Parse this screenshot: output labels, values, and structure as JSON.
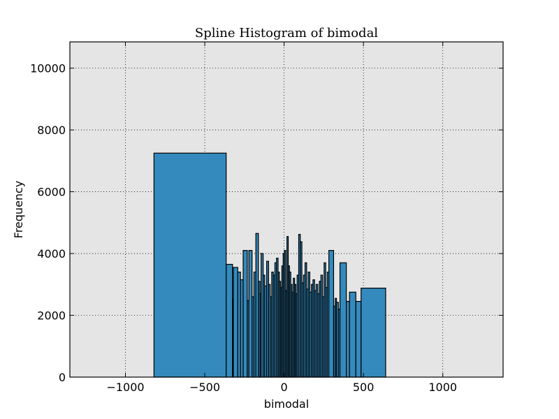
{
  "chart_data": {
    "type": "bar",
    "title": "Spline Histogram of bimodal",
    "xlabel": "bimodal",
    "ylabel": "Frequency",
    "xlim": [
      -1350,
      1380
    ],
    "ylim": [
      0,
      10850
    ],
    "xticks": [
      -1000,
      -500,
      0,
      500,
      1000
    ],
    "xtick_labels": [
      "−1000",
      "−500",
      "0",
      "500",
      "1000"
    ],
    "yticks": [
      0,
      2000,
      4000,
      6000,
      8000,
      10000
    ],
    "ytick_labels": [
      "0",
      "2000",
      "4000",
      "6000",
      "8000",
      "10000"
    ],
    "grid": true,
    "bar_color": "#348abd",
    "background_color": "#e5e5e5",
    "bins": [
      {
        "x0": -820,
        "x1": -365,
        "value": 7250
      },
      {
        "x0": -365,
        "x1": -325,
        "value": 3650
      },
      {
        "x0": -325,
        "x1": -320,
        "value": 2520
      },
      {
        "x0": -320,
        "x1": -292,
        "value": 3550
      },
      {
        "x0": -292,
        "x1": -275,
        "value": 3400
      },
      {
        "x0": -275,
        "x1": -258,
        "value": 3150
      },
      {
        "x0": -258,
        "x1": -232,
        "value": 4100
      },
      {
        "x0": -232,
        "x1": -222,
        "value": 2480
      },
      {
        "x0": -222,
        "x1": -202,
        "value": 4100
      },
      {
        "x0": -202,
        "x1": -190,
        "value": 2600
      },
      {
        "x0": -190,
        "x1": -178,
        "value": 3400
      },
      {
        "x0": -178,
        "x1": -162,
        "value": 4650
      },
      {
        "x0": -162,
        "x1": -152,
        "value": 3100
      },
      {
        "x0": -152,
        "x1": -145,
        "value": 2700
      },
      {
        "x0": -145,
        "x1": -132,
        "value": 4000
      },
      {
        "x0": -132,
        "x1": -122,
        "value": 3300
      },
      {
        "x0": -122,
        "x1": -110,
        "value": 2950
      },
      {
        "x0": -110,
        "x1": -98,
        "value": 3750
      },
      {
        "x0": -98,
        "x1": -88,
        "value": 3000
      },
      {
        "x0": -88,
        "x1": -78,
        "value": 2600
      },
      {
        "x0": -78,
        "x1": -68,
        "value": 3400
      },
      {
        "x0": -68,
        "x1": -58,
        "value": 3300
      },
      {
        "x0": -58,
        "x1": -48,
        "value": 3700
      },
      {
        "x0": -48,
        "x1": -38,
        "value": 3850
      },
      {
        "x0": -38,
        "x1": -30,
        "value": 3400
      },
      {
        "x0": -30,
        "x1": -22,
        "value": 3100
      },
      {
        "x0": -22,
        "x1": -14,
        "value": 2900
      },
      {
        "x0": -14,
        "x1": -6,
        "value": 3600
      },
      {
        "x0": -6,
        "x1": 2,
        "value": 4000
      },
      {
        "x0": 2,
        "x1": 10,
        "value": 4100
      },
      {
        "x0": 10,
        "x1": 18,
        "value": 2800
      },
      {
        "x0": 18,
        "x1": 26,
        "value": 4550
      },
      {
        "x0": 26,
        "x1": 34,
        "value": 3600
      },
      {
        "x0": 34,
        "x1": 42,
        "value": 3400
      },
      {
        "x0": 42,
        "x1": 50,
        "value": 3000
      },
      {
        "x0": 50,
        "x1": 58,
        "value": 2750
      },
      {
        "x0": 58,
        "x1": 66,
        "value": 3200
      },
      {
        "x0": 66,
        "x1": 74,
        "value": 3000
      },
      {
        "x0": 74,
        "x1": 82,
        "value": 2700
      },
      {
        "x0": 82,
        "x1": 92,
        "value": 3300
      },
      {
        "x0": 92,
        "x1": 102,
        "value": 4620
      },
      {
        "x0": 102,
        "x1": 112,
        "value": 4380
      },
      {
        "x0": 112,
        "x1": 122,
        "value": 3050
      },
      {
        "x0": 122,
        "x1": 132,
        "value": 3300
      },
      {
        "x0": 132,
        "x1": 142,
        "value": 3700
      },
      {
        "x0": 142,
        "x1": 152,
        "value": 2850
      },
      {
        "x0": 152,
        "x1": 162,
        "value": 3400
      },
      {
        "x0": 162,
        "x1": 172,
        "value": 2750
      },
      {
        "x0": 172,
        "x1": 182,
        "value": 3000
      },
      {
        "x0": 182,
        "x1": 192,
        "value": 3150
      },
      {
        "x0": 192,
        "x1": 202,
        "value": 2800
      },
      {
        "x0": 202,
        "x1": 212,
        "value": 3000
      },
      {
        "x0": 212,
        "x1": 222,
        "value": 2700
      },
      {
        "x0": 222,
        "x1": 232,
        "value": 3100
      },
      {
        "x0": 232,
        "x1": 242,
        "value": 3300
      },
      {
        "x0": 242,
        "x1": 252,
        "value": 2600
      },
      {
        "x0": 252,
        "x1": 262,
        "value": 3700
      },
      {
        "x0": 262,
        "x1": 272,
        "value": 2900
      },
      {
        "x0": 272,
        "x1": 282,
        "value": 3400
      },
      {
        "x0": 282,
        "x1": 312,
        "value": 4100
      },
      {
        "x0": 312,
        "x1": 322,
        "value": 2300
      },
      {
        "x0": 322,
        "x1": 330,
        "value": 2550
      },
      {
        "x0": 330,
        "x1": 342,
        "value": 2420
      },
      {
        "x0": 342,
        "x1": 352,
        "value": 2200
      },
      {
        "x0": 352,
        "x1": 392,
        "value": 3700
      },
      {
        "x0": 392,
        "x1": 412,
        "value": 2450
      },
      {
        "x0": 412,
        "x1": 452,
        "value": 2750
      },
      {
        "x0": 452,
        "x1": 485,
        "value": 2450
      },
      {
        "x0": 485,
        "x1": 640,
        "value": 2880
      }
    ]
  }
}
